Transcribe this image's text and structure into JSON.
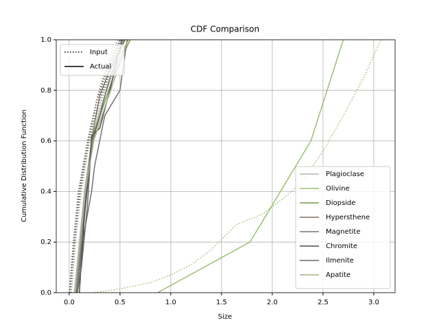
{
  "chart_data": {
    "type": "line",
    "title": "CDF Comparison",
    "xlabel": "Size",
    "ylabel": "Cumulative Distribution Function",
    "xlim": [
      -0.128,
      3.21
    ],
    "ylim": [
      0,
      1
    ],
    "xticks": [
      {
        "value": 0,
        "label": "0.0"
      },
      0.5,
      {
        "value": 1,
        "label": "1.0"
      },
      1.5,
      {
        "value": 2,
        "label": "2.0"
      },
      2.5,
      {
        "value": 3,
        "label": "3.0"
      }
    ],
    "yticks": [
      {
        "value": 0,
        "label": "0.0"
      },
      0.2,
      0.4,
      0.6,
      0.8,
      {
        "value": 1,
        "label": "1.0"
      }
    ],
    "grid": true,
    "line_styles": [
      {
        "label": "Input",
        "dash": "dotted"
      },
      {
        "label": "Actual",
        "dash": "solid"
      }
    ],
    "style_legend_loc": "upper left",
    "legend_loc": "lower right",
    "series": [
      {
        "name": "Plagioclase",
        "color": "#b4b4b4",
        "lines": [
          {
            "x": [
              0.0,
              0.05,
              0.1,
              0.18,
              0.28,
              0.38,
              0.5
            ],
            "values": [
              0,
              0.2,
              0.4,
              0.6,
              0.75,
              0.88,
              1.0
            ]
          },
          {
            "x": [
              0.05,
              0.1,
              0.15,
              0.22,
              0.3,
              0.42,
              0.58
            ],
            "values": [
              0,
              0.2,
              0.4,
              0.6,
              0.72,
              0.86,
              1.0
            ]
          }
        ]
      },
      {
        "name": "Olivine",
        "color": "#9bbf70",
        "lines": [
          {
            "x": [
              0.25,
              0.5,
              0.8,
              1.0,
              1.2,
              1.4,
              1.65,
              1.9,
              2.1,
              2.3,
              2.5,
              2.7,
              2.9,
              3.07
            ],
            "values": [
              0,
              0.015,
              0.04,
              0.07,
              0.11,
              0.17,
              0.27,
              0.31,
              0.37,
              0.44,
              0.56,
              0.7,
              0.85,
              1.0
            ]
          },
          {
            "x": [
              0.87,
              1.78,
              2.38,
              2.7
            ],
            "values": [
              0,
              0.2,
              0.6,
              1.0
            ]
          }
        ]
      },
      {
        "name": "Diopside",
        "color": "#6e9a4a",
        "lines": [
          {
            "x": [
              0.02,
              0.06,
              0.11,
              0.19,
              0.29,
              0.4,
              0.52
            ],
            "values": [
              0,
              0.2,
              0.4,
              0.6,
              0.75,
              0.88,
              1.0
            ]
          },
          {
            "x": [
              0.06,
              0.11,
              0.16,
              0.23,
              0.32,
              0.44,
              0.6
            ],
            "values": [
              0,
              0.2,
              0.4,
              0.6,
              0.72,
              0.86,
              1.0
            ]
          }
        ]
      },
      {
        "name": "Hypersthene",
        "color": "#7f6f60",
        "lines": [
          {
            "x": [
              0.01,
              0.05,
              0.1,
              0.19,
              0.28,
              0.37,
              0.48
            ],
            "values": [
              0,
              0.2,
              0.4,
              0.6,
              0.78,
              0.9,
              1.0
            ]
          },
          {
            "x": [
              0.07,
              0.12,
              0.17,
              0.22,
              0.3,
              0.4,
              0.55
            ],
            "values": [
              0,
              0.2,
              0.4,
              0.6,
              0.78,
              0.88,
              1.0
            ]
          }
        ]
      },
      {
        "name": "Magnetite",
        "color": "#707070",
        "lines": [
          {
            "x": [
              0.02,
              0.06,
              0.11,
              0.2,
              0.3,
              0.4,
              0.53
            ],
            "values": [
              0,
              0.2,
              0.4,
              0.6,
              0.74,
              0.87,
              1.0
            ]
          },
          {
            "x": [
              0.08,
              0.13,
              0.22,
              0.25,
              0.35,
              0.5,
              0.57
            ],
            "values": [
              0,
              0.2,
              0.4,
              0.5,
              0.7,
              0.8,
              1.0
            ]
          }
        ]
      },
      {
        "name": "Chromite",
        "color": "#4a4a4a",
        "lines": [
          {
            "x": [
              0.0,
              0.04,
              0.09,
              0.18,
              0.27,
              0.38,
              0.5
            ],
            "values": [
              0,
              0.2,
              0.4,
              0.6,
              0.76,
              0.89,
              1.0
            ]
          },
          {
            "x": [
              0.1,
              0.15,
              0.2,
              0.22,
              0.3,
              0.4,
              0.52
            ],
            "values": [
              0,
              0.3,
              0.5,
              0.62,
              0.65,
              0.8,
              1.0
            ]
          }
        ]
      },
      {
        "name": "Ilmenite",
        "color": "#686868",
        "lines": [
          {
            "x": [
              0.01,
              0.05,
              0.1,
              0.2,
              0.29,
              0.39,
              0.51
            ],
            "values": [
              0,
              0.2,
              0.4,
              0.6,
              0.75,
              0.88,
              1.0
            ]
          },
          {
            "x": [
              0.08,
              0.12,
              0.18,
              0.22,
              0.3,
              0.4,
              0.54
            ],
            "values": [
              0,
              0.1,
              0.35,
              0.6,
              0.7,
              0.85,
              1.0
            ]
          }
        ]
      },
      {
        "name": "Apatite",
        "color": "#a8a888",
        "lines": [
          {
            "x": [
              0.02,
              0.06,
              0.12,
              0.2,
              0.3,
              0.41,
              0.55
            ],
            "values": [
              0,
              0.2,
              0.4,
              0.6,
              0.74,
              0.86,
              1.0
            ]
          },
          {
            "x": [
              0.06,
              0.11,
              0.16,
              0.24,
              0.34,
              0.45,
              0.58
            ],
            "values": [
              0,
              0.2,
              0.4,
              0.6,
              0.72,
              0.85,
              1.0
            ]
          }
        ]
      }
    ]
  }
}
